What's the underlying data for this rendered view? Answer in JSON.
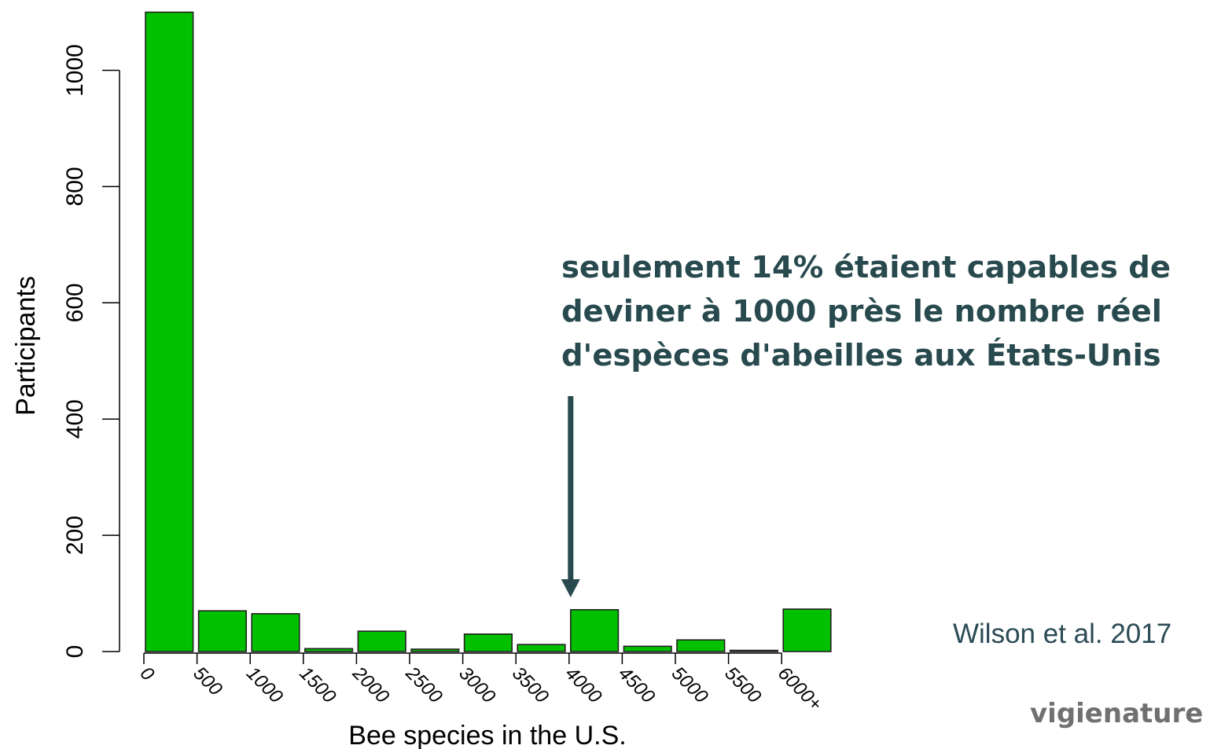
{
  "chart_data": {
    "type": "bar",
    "title": "",
    "xlabel": "Bee species in the U.S.",
    "ylabel": "Participants",
    "categories": [
      "0",
      "500",
      "1000",
      "1500",
      "2000",
      "2500",
      "3000",
      "3500",
      "4000",
      "4500",
      "5000",
      "5500",
      "6000+"
    ],
    "values": [
      1100,
      70,
      65,
      5,
      35,
      4,
      30,
      12,
      72,
      9,
      20,
      2,
      73
    ],
    "yticks": [
      0,
      200,
      400,
      600,
      800,
      1000
    ],
    "ylim": [
      0,
      1100
    ],
    "grid": false,
    "bar_color": "#00c000",
    "annotation": {
      "lines": [
        "seulement 14% étaient capables de",
        "deviner à 1000 près le nombre réel",
        "d'espèces d'abeilles aux États-Unis"
      ],
      "arrow_category": "4000",
      "arrow_color": "#284a4e"
    }
  },
  "citation": "Wilson et al. 2017",
  "brand": "vigienature"
}
